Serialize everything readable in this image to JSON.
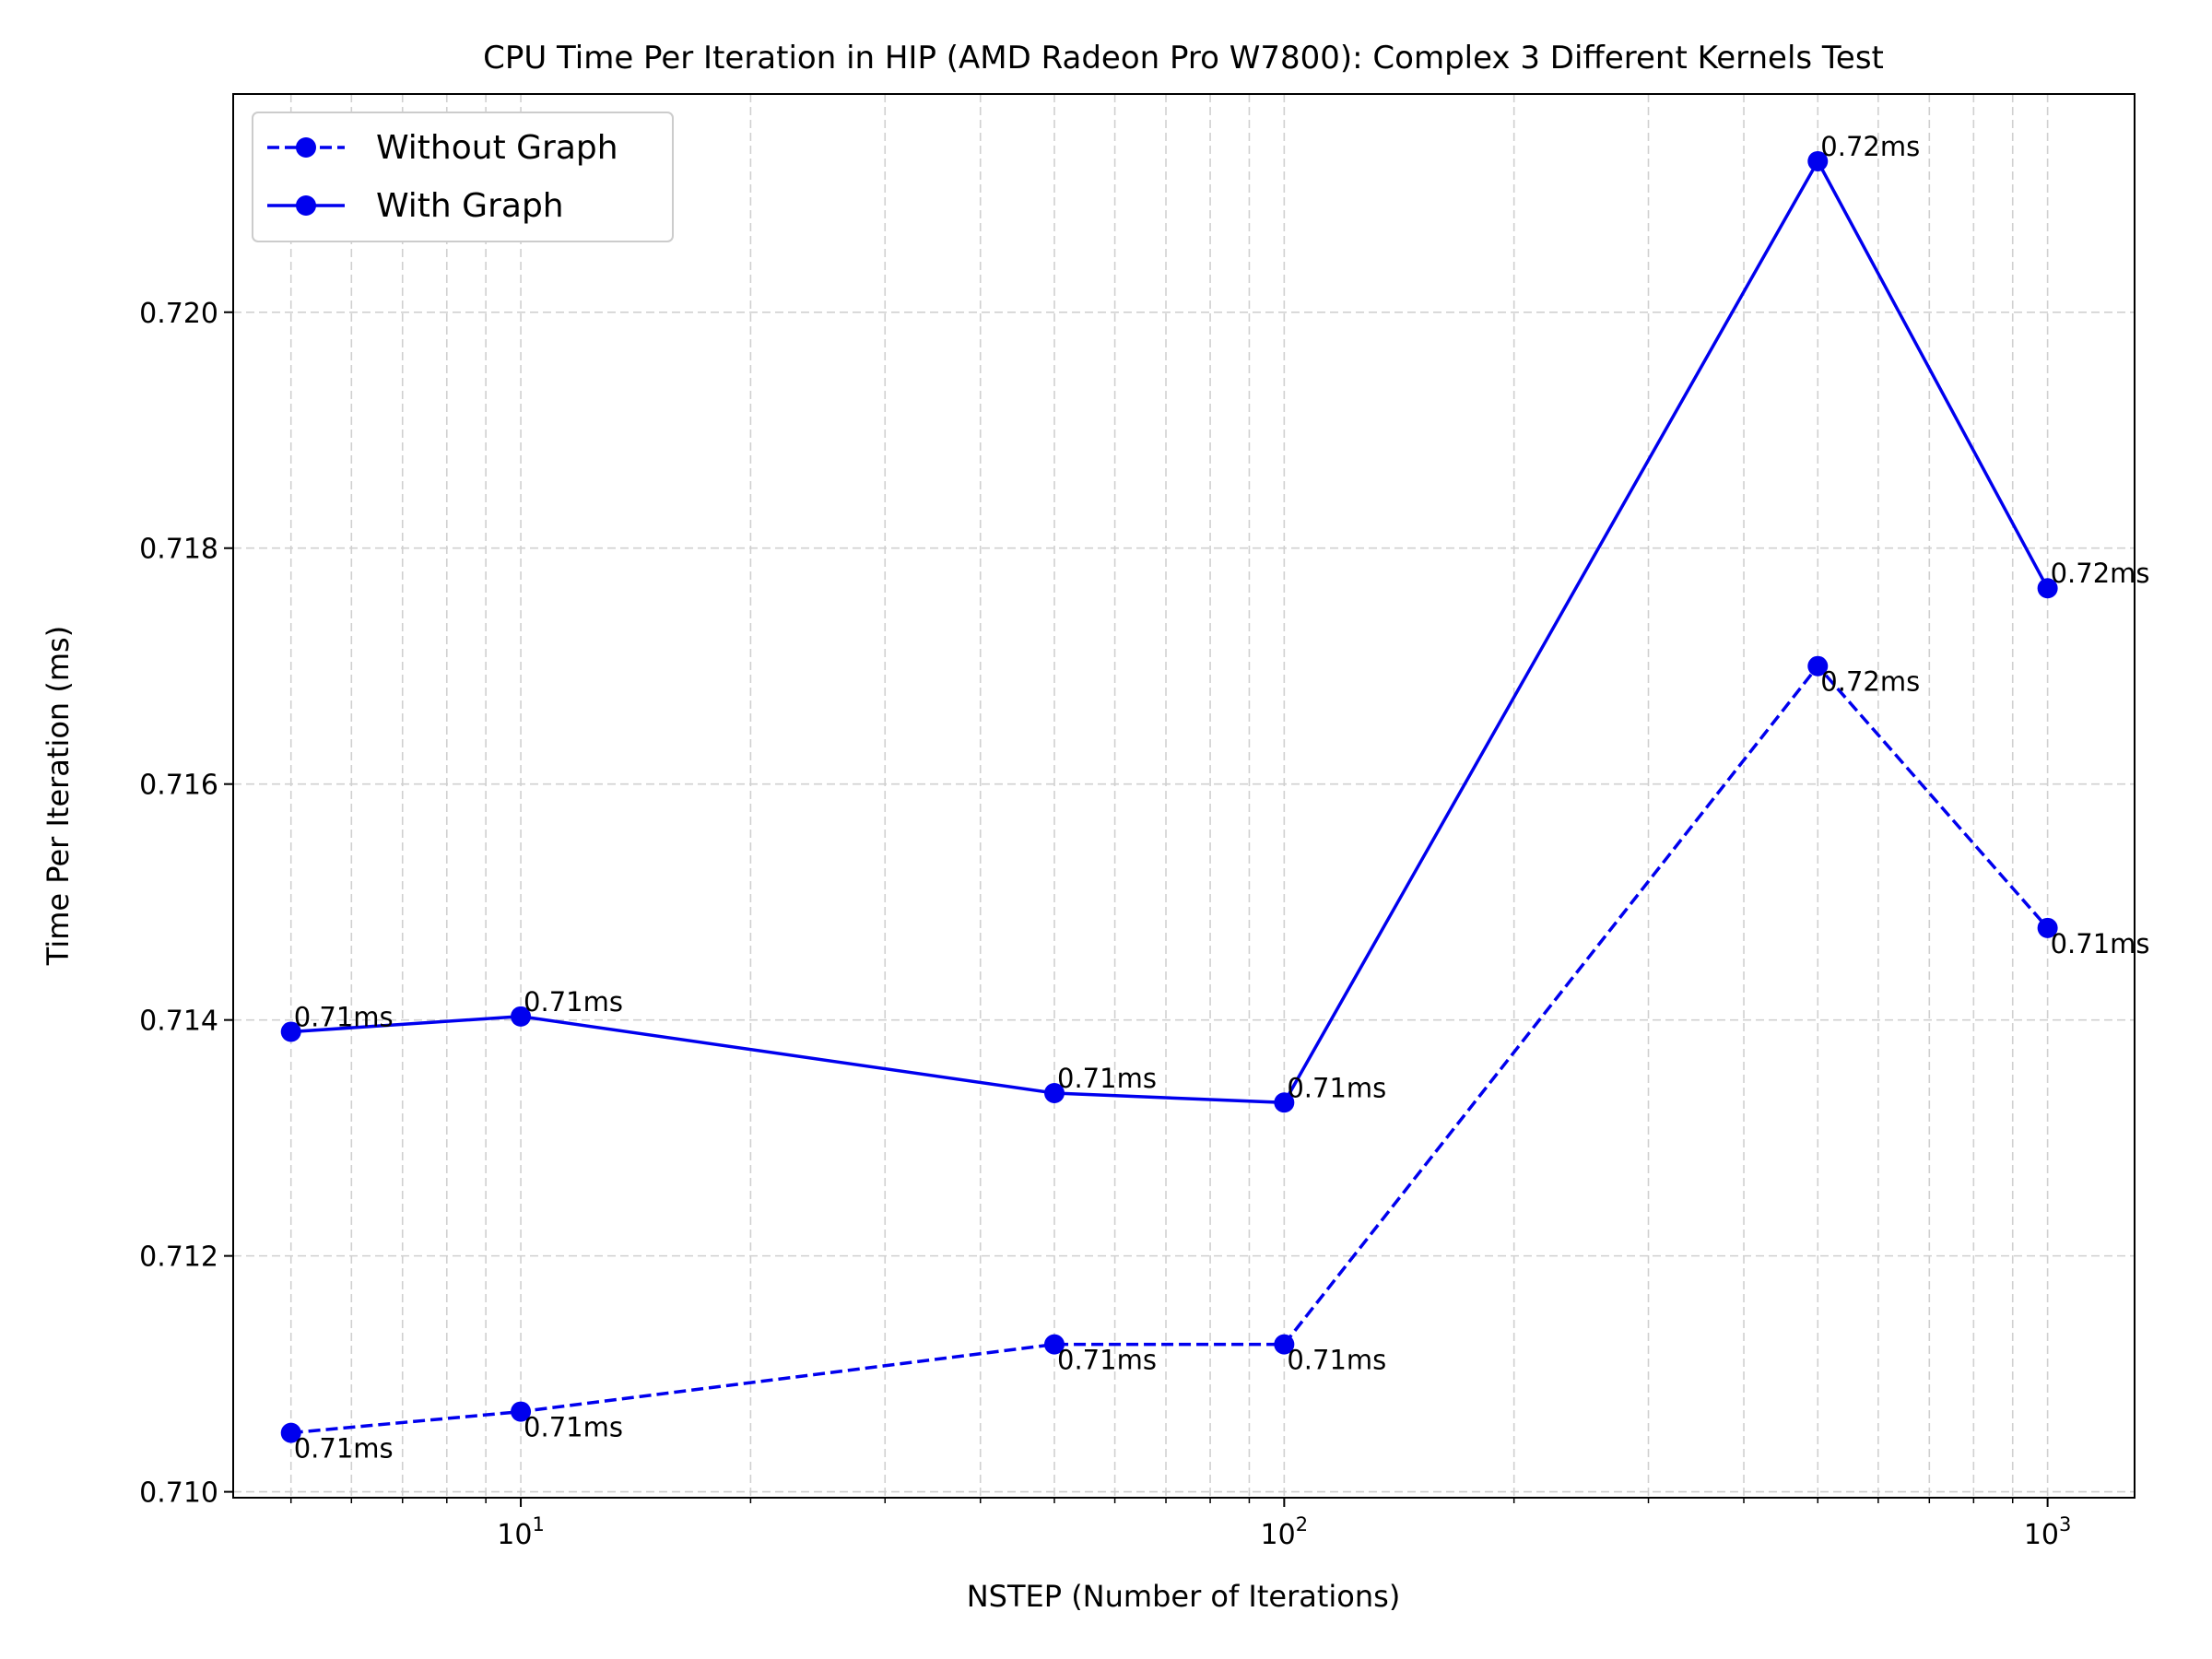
{
  "chart_data": {
    "type": "line",
    "title": "CPU Time Per Iteration in HIP (AMD Radeon Pro W7800): Complex 3 Different Kernels Test",
    "xlabel": "NSTEP (Number of Iterations)",
    "ylabel": "Time Per Iteration (ms)",
    "xscale": "log",
    "xlim": [
      4.2,
      1300
    ],
    "ylim": [
      0.70995,
      0.72185
    ],
    "grid": true,
    "legend_position": "top-left",
    "x": [
      5,
      10,
      50,
      100,
      500,
      1000
    ],
    "x_tick_labels": [
      {
        "value": 10,
        "base": "10",
        "exp": "1"
      },
      {
        "value": 100,
        "base": "10",
        "exp": "2"
      },
      {
        "value": 1000,
        "base": "10",
        "exp": "3"
      }
    ],
    "y_ticks": [
      0.71,
      0.712,
      0.714,
      0.716,
      0.718,
      0.72
    ],
    "y_tick_labels": [
      "0.710",
      "0.712",
      "0.714",
      "0.716",
      "0.718",
      "0.720"
    ],
    "series": [
      {
        "name": "Without Graph",
        "style": "dashed",
        "color": "#0000ee",
        "values": [
          0.7105,
          0.71068,
          0.71125,
          0.71125,
          0.717,
          0.71478
        ],
        "labels": [
          "0.71ms",
          "0.71ms",
          "0.71ms",
          "0.71ms",
          "0.72ms",
          "0.71ms"
        ]
      },
      {
        "name": "With Graph",
        "style": "solid",
        "color": "#0000ee",
        "values": [
          0.7139,
          0.71403,
          0.71338,
          0.7133,
          0.72128,
          0.71766
        ],
        "labels": [
          "0.71ms",
          "0.71ms",
          "0.71ms",
          "0.71ms",
          "0.72ms",
          "0.72ms"
        ]
      }
    ]
  }
}
